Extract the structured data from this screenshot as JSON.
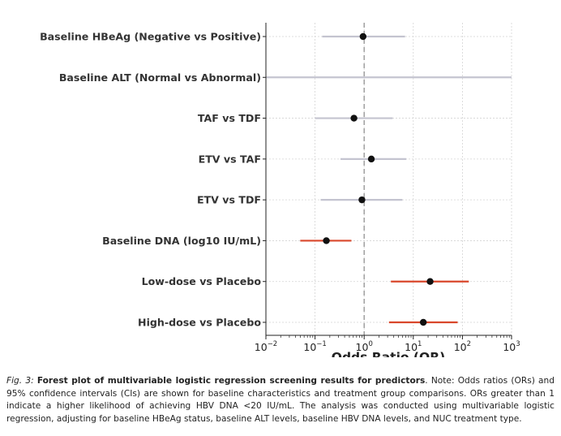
{
  "chart_data": {
    "type": "forest",
    "xlabel": "Odds Ratio (OR)",
    "x_scale": "log",
    "xlim": [
      0.01,
      1000
    ],
    "x_ticks": [
      {
        "base": "10",
        "exp": "−2",
        "value": 0.01
      },
      {
        "base": "10",
        "exp": "−1",
        "value": 0.1
      },
      {
        "base": "10",
        "exp": "0",
        "value": 1
      },
      {
        "base": "10",
        "exp": "1",
        "value": 10
      },
      {
        "base": "10",
        "exp": "2",
        "value": 100
      },
      {
        "base": "10",
        "exp": "3",
        "value": 1000
      }
    ],
    "reference_line": 1,
    "grid": true,
    "gray_color": "#c4c4d0",
    "red_color": "#d9472b",
    "point_color": "#111111",
    "rows": [
      {
        "label": "Baseline HBeAg (Negative vs Positive)",
        "or": 0.95,
        "lower": 0.14,
        "upper": 6.8,
        "significant": false
      },
      {
        "label": "Baseline ALT (Normal vs Abnormal)",
        "or": null,
        "lower": 0.01,
        "upper": 1000,
        "significant": false
      },
      {
        "label": "TAF vs TDF",
        "or": 0.62,
        "lower": 0.1,
        "upper": 3.8,
        "significant": false
      },
      {
        "label": "ETV vs TAF",
        "or": 1.4,
        "lower": 0.33,
        "upper": 7.2,
        "significant": false
      },
      {
        "label": "ETV vs TDF",
        "or": 0.9,
        "lower": 0.13,
        "upper": 6.0,
        "significant": false
      },
      {
        "label": "Baseline DNA (log10 IU/mL)",
        "or": 0.17,
        "lower": 0.05,
        "upper": 0.55,
        "significant": true
      },
      {
        "label": "Low-dose vs Placebo",
        "or": 22,
        "lower": 3.5,
        "upper": 135,
        "significant": true
      },
      {
        "label": "High-dose vs Placebo",
        "or": 16,
        "lower": 3.2,
        "upper": 80,
        "significant": true
      }
    ]
  },
  "caption": {
    "lead": "Fig. 3:",
    "title": "Forest plot of multivariable logistic regression screening results for predictors",
    "body": ". Note: Odds ratios (ORs) and 95% confidence intervals (CIs) are shown for baseline characteristics and treatment group comparisons. ORs greater than 1 indicate a higher likelihood of achieving HBV DNA <20 IU/mL. The analysis was conducted using multivariable logistic regression, adjusting for baseline HBeAg status, baseline ALT levels, baseline HBV DNA levels, and NUC treatment type."
  }
}
